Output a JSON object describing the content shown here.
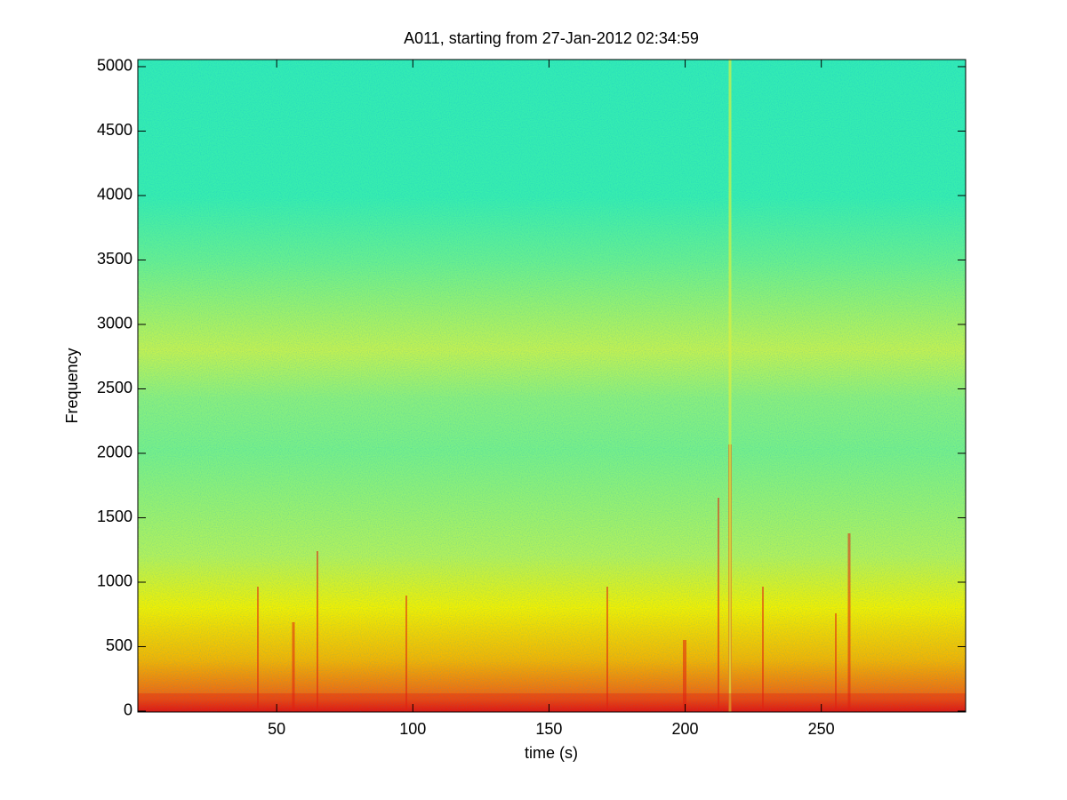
{
  "chart_data": {
    "type": "spectrogram",
    "title": "A011, starting from 27-Jan-2012 02:34:59",
    "x_label": "time (s)",
    "y_label": "Frequency",
    "xlim": [
      -1,
      303
    ],
    "xticks": [
      50,
      100,
      150,
      200,
      250
    ],
    "ylim": [
      -7,
      5055
    ],
    "yticks": [
      0,
      500,
      1000,
      1500,
      2000,
      2500,
      3000,
      3500,
      4000,
      4500,
      5000
    ]
  }
}
